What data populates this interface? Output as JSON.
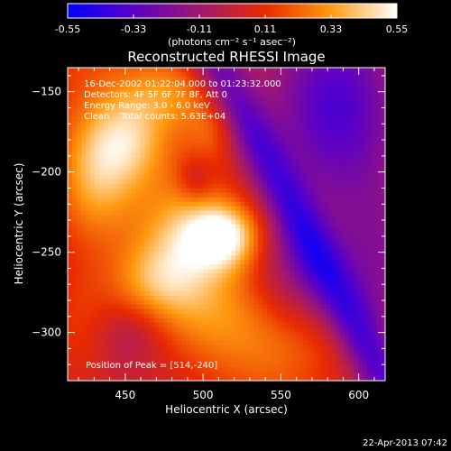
{
  "chart_data": {
    "type": "heatmap",
    "title": "Reconstructed RHESSI Image",
    "xlabel": "Heliocentric X (arcsec)",
    "ylabel": "Heliocentric Y (arcsec)",
    "xlim": [
      413,
      617
    ],
    "ylim": [
      -330,
      -135
    ],
    "x_ticks": [
      450,
      500,
      550,
      600
    ],
    "y_ticks": [
      -150,
      -200,
      -250,
      -300
    ],
    "colorbar": {
      "min": -0.55,
      "max": 0.55,
      "ticks": [
        "-0.55",
        "-0.33",
        "-0.11",
        "0.11",
        "0.33",
        "0.55"
      ],
      "label": "(photons cm⁻² s⁻¹ asec⁻²)",
      "colors": [
        "#0000ff",
        "#5a00c8",
        "#a01870",
        "#e82a00",
        "#ff9a10",
        "#ffffff"
      ]
    },
    "annotations": [
      "16-Dec-2002 01:22:04.000 to 01:23:32.000",
      "Detectors: 4F 5F 6F 7F 8F, Att 0",
      "Energy Range: 3.0 - 6.0 keV",
      "Clean    Total counts: 5.63E+04",
      "Position of Peak = [514,-240]"
    ],
    "peak": {
      "x": 514,
      "y": -240
    },
    "sources": [
      {
        "x": 514,
        "y": -240,
        "sx": 16,
        "sy": 14,
        "amp": 0.42
      },
      {
        "x": 490,
        "y": -238,
        "sx": 22,
        "sy": 22,
        "amp": 0.24
      },
      {
        "x": 470,
        "y": -268,
        "sx": 22,
        "sy": 18,
        "amp": 0.26
      },
      {
        "x": 430,
        "y": -205,
        "sx": 18,
        "sy": 28,
        "amp": 0.3
      },
      {
        "x": 452,
        "y": -180,
        "sx": 18,
        "sy": 20,
        "amp": 0.26
      },
      {
        "x": 480,
        "y": -150,
        "sx": 22,
        "sy": 16,
        "amp": 0.22
      },
      {
        "x": 505,
        "y": -175,
        "sx": 12,
        "sy": 14,
        "amp": 0.14
      },
      {
        "x": 505,
        "y": -290,
        "sx": 30,
        "sy": 22,
        "amp": 0.16
      },
      {
        "x": 420,
        "y": -295,
        "sx": 16,
        "sy": 30,
        "amp": 0.12
      },
      {
        "x": 560,
        "y": -310,
        "sx": 30,
        "sy": 18,
        "amp": 0.1
      },
      {
        "x": 585,
        "y": -160,
        "sx": 28,
        "sy": 40,
        "amp": -0.36
      },
      {
        "x": 560,
        "y": -260,
        "sx": 20,
        "sy": 24,
        "amp": -0.18
      },
      {
        "x": 610,
        "y": -260,
        "sx": 20,
        "sy": 40,
        "amp": -0.18
      },
      {
        "x": 455,
        "y": -300,
        "sx": 16,
        "sy": 14,
        "amp": -0.12
      },
      {
        "x": 495,
        "y": -205,
        "sx": 8,
        "sy": 10,
        "amp": -0.14
      }
    ],
    "ridge": {
      "amp": 0.23,
      "x0": 500,
      "y0": -260,
      "slope": -0.55,
      "width": 36
    },
    "dark_band": {
      "amp": -0.32,
      "x0": 545,
      "y0": -200,
      "slope": -0.55,
      "width": 12
    }
  },
  "footer": {
    "timestamp": "22-Apr-2013 07:42"
  }
}
